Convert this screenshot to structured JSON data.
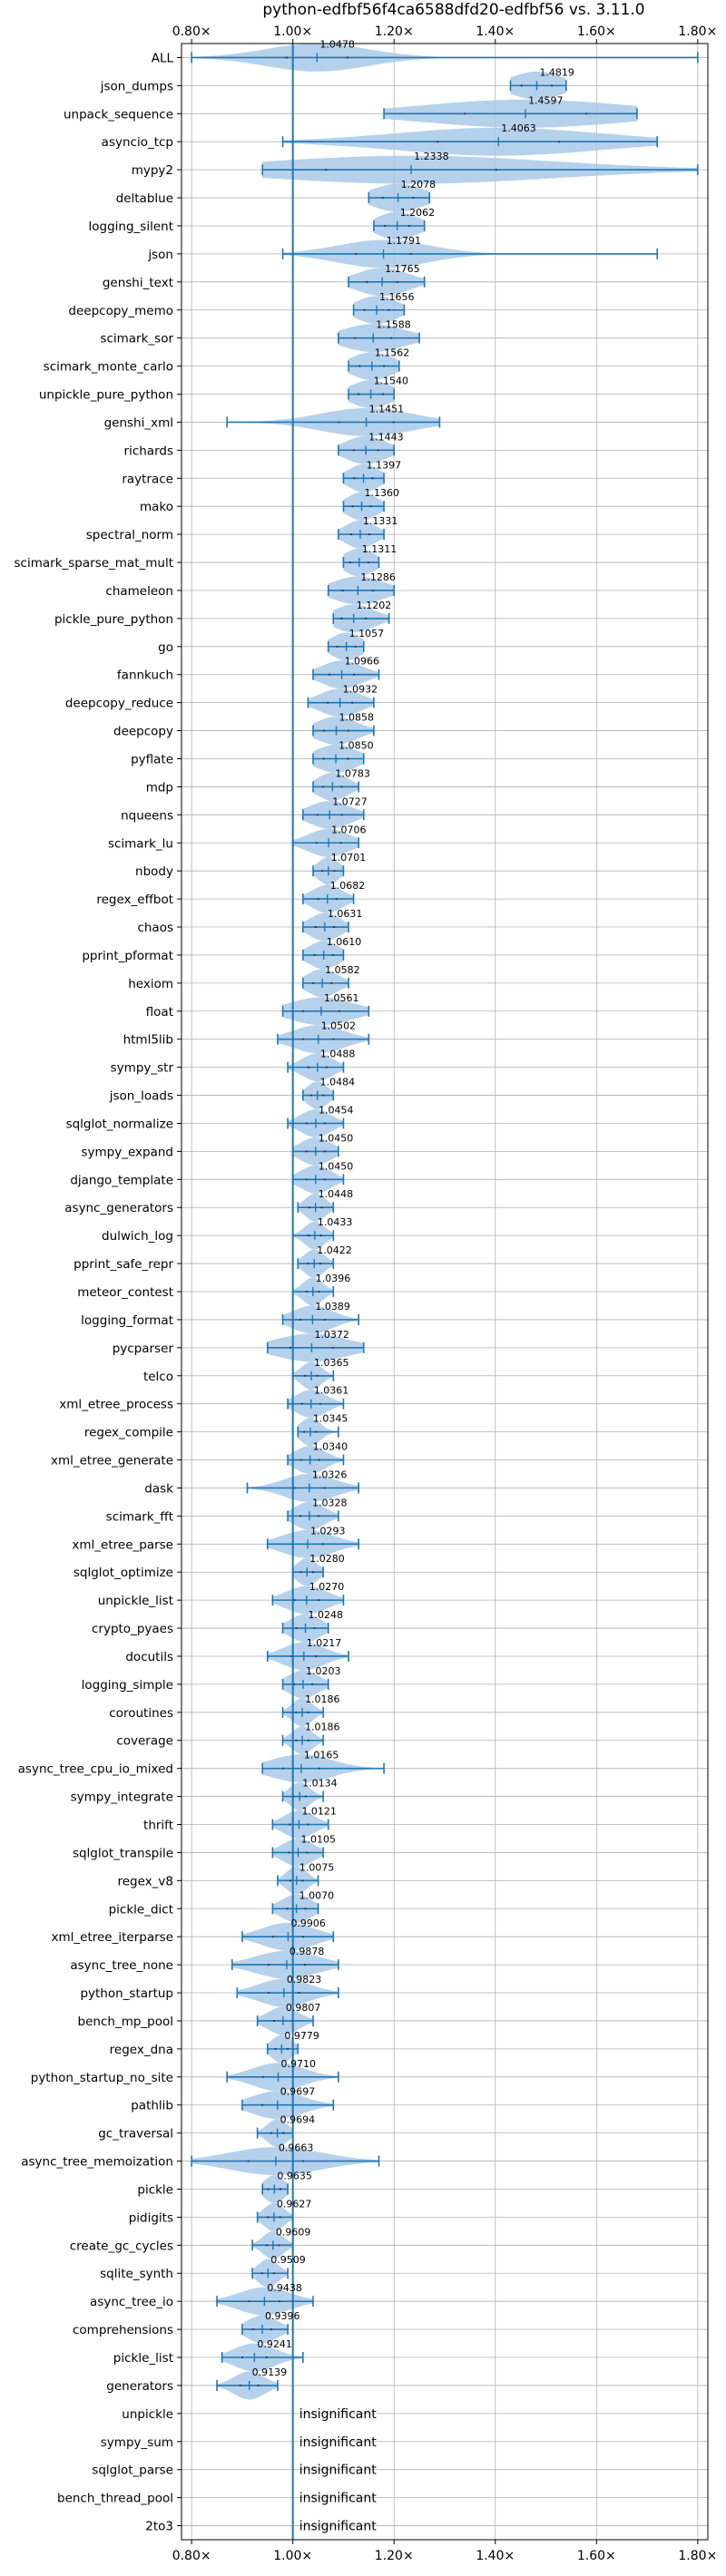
{
  "chart_data": {
    "type": "violin",
    "title": "python-edfbf56f4ca6588dfd20-edfbf56 vs. 3.11.0",
    "xlabel": "",
    "ylabel": "",
    "xlim": [
      0.78,
      1.82
    ],
    "x_ticks": [
      0.8,
      1.0,
      1.2,
      1.4,
      1.6,
      1.8
    ],
    "x_tick_labels": [
      "0.80×",
      "1.00×",
      "1.20×",
      "1.40×",
      "1.60×",
      "1.80×"
    ],
    "reference_line": 1.0,
    "grid": true,
    "insignificant_text": "insignificant",
    "colors": {
      "violin": "#a9c9e8",
      "line": "#1f77b4",
      "grid": "#b0b0b0"
    },
    "benchmarks": [
      {
        "name": "ALL",
        "value": 1.0478,
        "min": 0.8,
        "max": 1.8,
        "spread": 0.1
      },
      {
        "name": "json_dumps",
        "value": 1.4819,
        "min": 1.43,
        "max": 1.54,
        "spread": 0.05
      },
      {
        "name": "unpack_sequence",
        "value": 1.4597,
        "min": 1.18,
        "max": 1.68,
        "spread": 0.2
      },
      {
        "name": "asyncio_tcp",
        "value": 1.4063,
        "min": 0.98,
        "max": 1.72,
        "spread": 0.2
      },
      {
        "name": "mypy2",
        "value": 1.2338,
        "min": 0.94,
        "max": 1.8,
        "spread": 0.28
      },
      {
        "name": "deltablue",
        "value": 1.2078,
        "min": 1.15,
        "max": 1.27,
        "spread": 0.05
      },
      {
        "name": "logging_silent",
        "value": 1.2062,
        "min": 1.16,
        "max": 1.26,
        "spread": 0.04
      },
      {
        "name": "json",
        "value": 1.1791,
        "min": 0.98,
        "max": 1.72,
        "spread": 0.09
      },
      {
        "name": "genshi_text",
        "value": 1.1765,
        "min": 1.11,
        "max": 1.26,
        "spread": 0.05
      },
      {
        "name": "deepcopy_memo",
        "value": 1.1656,
        "min": 1.12,
        "max": 1.22,
        "spread": 0.04
      },
      {
        "name": "scimark_sor",
        "value": 1.1588,
        "min": 1.09,
        "max": 1.25,
        "spread": 0.06
      },
      {
        "name": "scimark_monte_carlo",
        "value": 1.1562,
        "min": 1.11,
        "max": 1.21,
        "spread": 0.04
      },
      {
        "name": "unpickle_pure_python",
        "value": 1.154,
        "min": 1.11,
        "max": 1.2,
        "spread": 0.04
      },
      {
        "name": "genshi_xml",
        "value": 1.1451,
        "min": 0.87,
        "max": 1.29,
        "spread": 0.09
      },
      {
        "name": "richards",
        "value": 1.1443,
        "min": 1.09,
        "max": 1.2,
        "spread": 0.04
      },
      {
        "name": "raytrace",
        "value": 1.1397,
        "min": 1.1,
        "max": 1.18,
        "spread": 0.03
      },
      {
        "name": "mako",
        "value": 1.136,
        "min": 1.1,
        "max": 1.18,
        "spread": 0.03
      },
      {
        "name": "spectral_norm",
        "value": 1.1331,
        "min": 1.09,
        "max": 1.18,
        "spread": 0.03
      },
      {
        "name": "scimark_sparse_mat_mult",
        "value": 1.1311,
        "min": 1.1,
        "max": 1.17,
        "spread": 0.03
      },
      {
        "name": "chameleon",
        "value": 1.1286,
        "min": 1.07,
        "max": 1.2,
        "spread": 0.05
      },
      {
        "name": "pickle_pure_python",
        "value": 1.1202,
        "min": 1.08,
        "max": 1.19,
        "spread": 0.04
      },
      {
        "name": "go",
        "value": 1.1057,
        "min": 1.07,
        "max": 1.14,
        "spread": 0.03
      },
      {
        "name": "fannkuch",
        "value": 1.0966,
        "min": 1.04,
        "max": 1.17,
        "spread": 0.04
      },
      {
        "name": "deepcopy_reduce",
        "value": 1.0932,
        "min": 1.03,
        "max": 1.16,
        "spread": 0.04
      },
      {
        "name": "deepcopy",
        "value": 1.0858,
        "min": 1.04,
        "max": 1.16,
        "spread": 0.04
      },
      {
        "name": "pyflate",
        "value": 1.085,
        "min": 1.04,
        "max": 1.14,
        "spread": 0.04
      },
      {
        "name": "mdp",
        "value": 1.0783,
        "min": 1.04,
        "max": 1.13,
        "spread": 0.03
      },
      {
        "name": "nqueens",
        "value": 1.0727,
        "min": 1.02,
        "max": 1.14,
        "spread": 0.04
      },
      {
        "name": "scimark_lu",
        "value": 1.0706,
        "min": 1.0,
        "max": 1.13,
        "spread": 0.04
      },
      {
        "name": "nbody",
        "value": 1.0701,
        "min": 1.04,
        "max": 1.1,
        "spread": 0.02
      },
      {
        "name": "regex_effbot",
        "value": 1.0682,
        "min": 1.02,
        "max": 1.12,
        "spread": 0.03
      },
      {
        "name": "chaos",
        "value": 1.0631,
        "min": 1.02,
        "max": 1.11,
        "spread": 0.03
      },
      {
        "name": "pprint_pformat",
        "value": 1.061,
        "min": 1.02,
        "max": 1.1,
        "spread": 0.03
      },
      {
        "name": "hexiom",
        "value": 1.0582,
        "min": 1.02,
        "max": 1.11,
        "spread": 0.03
      },
      {
        "name": "float",
        "value": 1.0561,
        "min": 0.98,
        "max": 1.15,
        "spread": 0.06
      },
      {
        "name": "html5lib",
        "value": 1.0502,
        "min": 0.97,
        "max": 1.15,
        "spread": 0.05
      },
      {
        "name": "sympy_str",
        "value": 1.0488,
        "min": 0.99,
        "max": 1.1,
        "spread": 0.03
      },
      {
        "name": "json_loads",
        "value": 1.0484,
        "min": 1.02,
        "max": 1.08,
        "spread": 0.02
      },
      {
        "name": "sqlglot_normalize",
        "value": 1.0454,
        "min": 0.99,
        "max": 1.1,
        "spread": 0.03
      },
      {
        "name": "sympy_expand",
        "value": 1.045,
        "min": 1.0,
        "max": 1.09,
        "spread": 0.03
      },
      {
        "name": "django_template",
        "value": 1.045,
        "min": 1.0,
        "max": 1.1,
        "spread": 0.03
      },
      {
        "name": "async_generators",
        "value": 1.0448,
        "min": 1.01,
        "max": 1.08,
        "spread": 0.02
      },
      {
        "name": "dulwich_log",
        "value": 1.0433,
        "min": 1.0,
        "max": 1.08,
        "spread": 0.02
      },
      {
        "name": "pprint_safe_repr",
        "value": 1.0422,
        "min": 1.01,
        "max": 1.08,
        "spread": 0.02
      },
      {
        "name": "meteor_contest",
        "value": 1.0396,
        "min": 1.0,
        "max": 1.08,
        "spread": 0.02
      },
      {
        "name": "logging_format",
        "value": 1.0389,
        "min": 0.98,
        "max": 1.13,
        "spread": 0.04
      },
      {
        "name": "pycparser",
        "value": 1.0372,
        "min": 0.95,
        "max": 1.14,
        "spread": 0.07
      },
      {
        "name": "telco",
        "value": 1.0365,
        "min": 1.0,
        "max": 1.08,
        "spread": 0.02
      },
      {
        "name": "xml_etree_process",
        "value": 1.0361,
        "min": 0.99,
        "max": 1.1,
        "spread": 0.03
      },
      {
        "name": "regex_compile",
        "value": 1.0345,
        "min": 1.01,
        "max": 1.09,
        "spread": 0.02
      },
      {
        "name": "xml_etree_generate",
        "value": 1.034,
        "min": 0.99,
        "max": 1.1,
        "spread": 0.03
      },
      {
        "name": "dask",
        "value": 1.0326,
        "min": 0.91,
        "max": 1.13,
        "spread": 0.05
      },
      {
        "name": "scimark_fft",
        "value": 1.0328,
        "min": 0.99,
        "max": 1.09,
        "spread": 0.03
      },
      {
        "name": "xml_etree_parse",
        "value": 1.0293,
        "min": 0.95,
        "max": 1.13,
        "spread": 0.05
      },
      {
        "name": "sqlglot_optimize",
        "value": 1.028,
        "min": 1.0,
        "max": 1.06,
        "spread": 0.02
      },
      {
        "name": "unpickle_list",
        "value": 1.027,
        "min": 0.96,
        "max": 1.1,
        "spread": 0.04
      },
      {
        "name": "crypto_pyaes",
        "value": 1.0248,
        "min": 0.98,
        "max": 1.07,
        "spread": 0.03
      },
      {
        "name": "docutils",
        "value": 1.0217,
        "min": 0.95,
        "max": 1.11,
        "spread": 0.04
      },
      {
        "name": "logging_simple",
        "value": 1.0203,
        "min": 0.98,
        "max": 1.07,
        "spread": 0.03
      },
      {
        "name": "coroutines",
        "value": 1.0186,
        "min": 0.98,
        "max": 1.06,
        "spread": 0.02
      },
      {
        "name": "coverage",
        "value": 1.0186,
        "min": 0.98,
        "max": 1.06,
        "spread": 0.02
      },
      {
        "name": "async_tree_cpu_io_mixed",
        "value": 1.0165,
        "min": 0.94,
        "max": 1.18,
        "spread": 0.06
      },
      {
        "name": "sympy_integrate",
        "value": 1.0134,
        "min": 0.98,
        "max": 1.06,
        "spread": 0.02
      },
      {
        "name": "thrift",
        "value": 1.0121,
        "min": 0.96,
        "max": 1.07,
        "spread": 0.03
      },
      {
        "name": "sqlglot_transpile",
        "value": 1.0105,
        "min": 0.96,
        "max": 1.06,
        "spread": 0.03
      },
      {
        "name": "regex_v8",
        "value": 1.0075,
        "min": 0.97,
        "max": 1.05,
        "spread": 0.02
      },
      {
        "name": "pickle_dict",
        "value": 1.007,
        "min": 0.96,
        "max": 1.05,
        "spread": 0.03
      },
      {
        "name": "xml_etree_iterparse",
        "value": 0.9906,
        "min": 0.9,
        "max": 1.08,
        "spread": 0.05
      },
      {
        "name": "async_tree_none",
        "value": 0.9878,
        "min": 0.88,
        "max": 1.09,
        "spread": 0.06
      },
      {
        "name": "python_startup",
        "value": 0.9823,
        "min": 0.89,
        "max": 1.09,
        "spread": 0.05
      },
      {
        "name": "bench_mp_pool",
        "value": 0.9807,
        "min": 0.93,
        "max": 1.04,
        "spread": 0.03
      },
      {
        "name": "regex_dna",
        "value": 0.9779,
        "min": 0.95,
        "max": 1.01,
        "spread": 0.02
      },
      {
        "name": "python_startup_no_site",
        "value": 0.971,
        "min": 0.87,
        "max": 1.09,
        "spread": 0.05
      },
      {
        "name": "pathlib",
        "value": 0.9697,
        "min": 0.9,
        "max": 1.08,
        "spread": 0.05
      },
      {
        "name": "gc_traversal",
        "value": 0.9694,
        "min": 0.93,
        "max": 1.0,
        "spread": 0.02
      },
      {
        "name": "async_tree_memoization",
        "value": 0.9663,
        "min": 0.8,
        "max": 1.17,
        "spread": 0.09
      },
      {
        "name": "pickle",
        "value": 0.9635,
        "min": 0.94,
        "max": 0.99,
        "spread": 0.02
      },
      {
        "name": "pidigits",
        "value": 0.9627,
        "min": 0.93,
        "max": 1.0,
        "spread": 0.02
      },
      {
        "name": "create_gc_cycles",
        "value": 0.9609,
        "min": 0.92,
        "max": 1.0,
        "spread": 0.02
      },
      {
        "name": "sqlite_synth",
        "value": 0.9509,
        "min": 0.92,
        "max": 0.99,
        "spread": 0.02
      },
      {
        "name": "async_tree_io",
        "value": 0.9438,
        "min": 0.85,
        "max": 1.04,
        "spread": 0.05
      },
      {
        "name": "comprehensions",
        "value": 0.9396,
        "min": 0.9,
        "max": 0.99,
        "spread": 0.03
      },
      {
        "name": "pickle_list",
        "value": 0.9241,
        "min": 0.86,
        "max": 1.02,
        "spread": 0.04
      },
      {
        "name": "generators",
        "value": 0.9139,
        "min": 0.85,
        "max": 0.97,
        "spread": 0.03
      },
      {
        "name": "unpickle",
        "value": null,
        "insignificant": true
      },
      {
        "name": "sympy_sum",
        "value": null,
        "insignificant": true
      },
      {
        "name": "sqlglot_parse",
        "value": null,
        "insignificant": true
      },
      {
        "name": "bench_thread_pool",
        "value": null,
        "insignificant": true
      },
      {
        "name": "2to3",
        "value": null,
        "insignificant": true
      }
    ]
  }
}
